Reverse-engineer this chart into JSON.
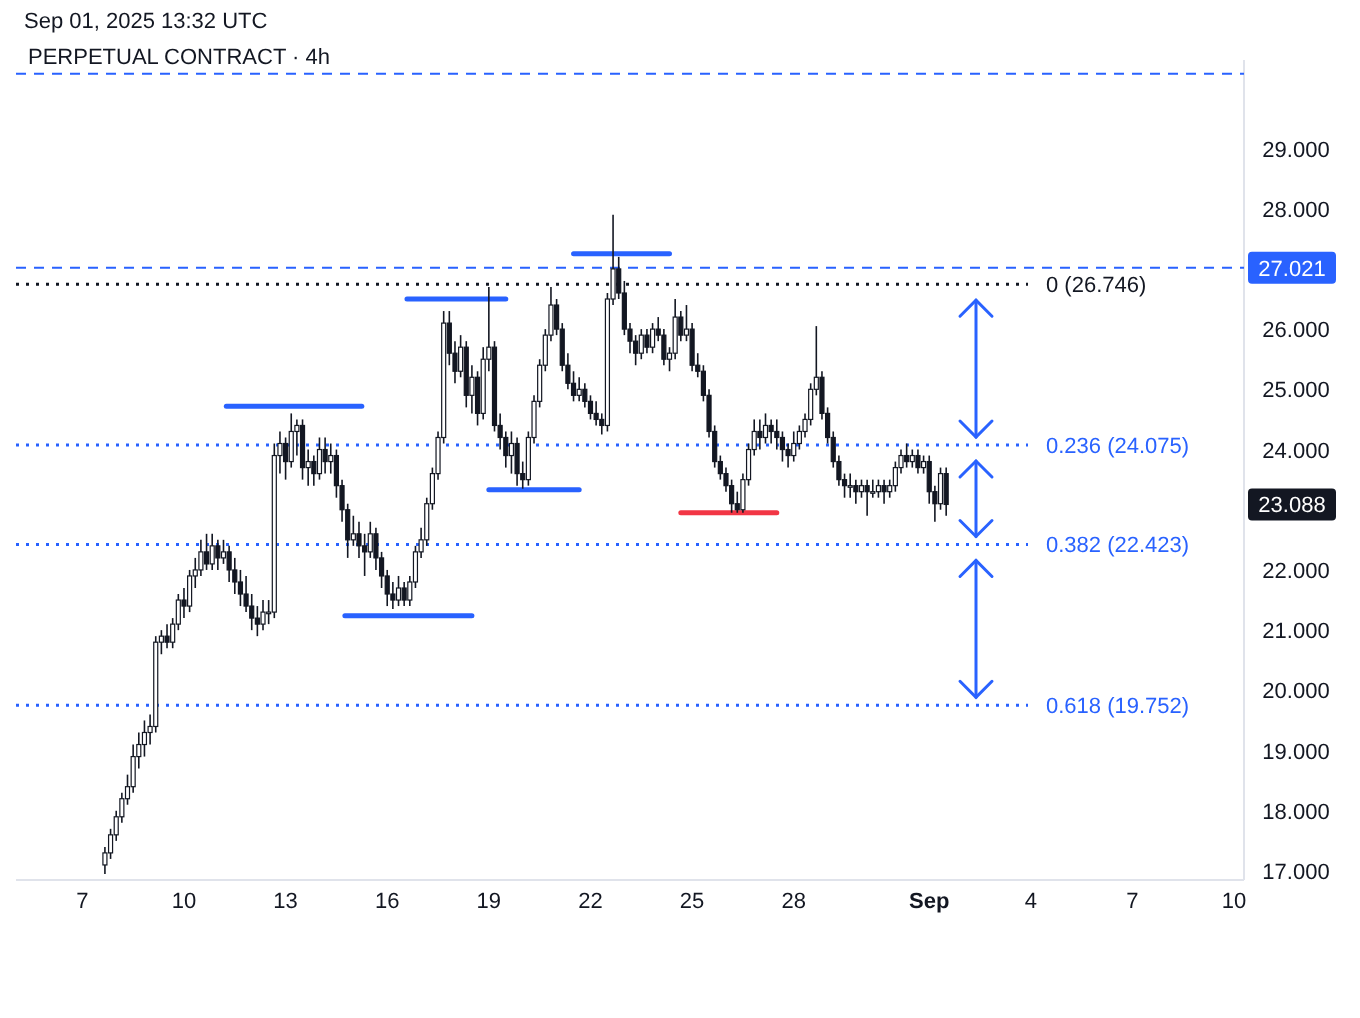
{
  "chart_data": {
    "type": "candlestick",
    "title": "PERPETUAL CONTRACT · 4h",
    "subtitle": "Sep 01, 2025 13:32 UTC",
    "color": "#131722",
    "xlim": [
      "2025-08-05T01:00",
      "2025-09-10T07:00"
    ],
    "xticks": [
      {
        "value": "2025-08-07",
        "label": "7"
      },
      {
        "value": "2025-08-10",
        "label": "10"
      },
      {
        "value": "2025-08-13",
        "label": "13"
      },
      {
        "value": "2025-08-16",
        "label": "16"
      },
      {
        "value": "2025-08-19",
        "label": "19"
      },
      {
        "value": "2025-08-22",
        "label": "22"
      },
      {
        "value": "2025-08-25",
        "label": "25"
      },
      {
        "value": "2025-08-28",
        "label": "28"
      },
      {
        "value": "2025-09-01",
        "label": "Sep"
      },
      {
        "value": "2025-09-04",
        "label": "4"
      },
      {
        "value": "2025-09-07",
        "label": "7"
      },
      {
        "value": "2025-09-10",
        "label": "10"
      }
    ],
    "ylim": [
      16.85,
      30.47
    ],
    "yticks": [
      {
        "value": 17,
        "label": "17.000"
      },
      {
        "value": 18,
        "label": "18.000"
      },
      {
        "value": 19,
        "label": "19.000"
      },
      {
        "value": 20,
        "label": "20.000"
      },
      {
        "value": 21,
        "label": "21.000"
      },
      {
        "value": 22,
        "label": "22.000"
      },
      {
        "value": 24,
        "label": "24.000"
      },
      {
        "value": 25,
        "label": "25.000"
      },
      {
        "value": 26,
        "label": "26.000"
      },
      {
        "value": 28,
        "label": "28.000"
      },
      {
        "value": 29,
        "label": "29.000"
      }
    ],
    "x": [
      "2025-08-07T16:00",
      "2025-08-07T20:00",
      "2025-08-08T00:00",
      "2025-08-08T04:00",
      "2025-08-08T08:00",
      "2025-08-08T12:00",
      "2025-08-08T16:00",
      "2025-08-08T20:00",
      "2025-08-09T00:00",
      "2025-08-09T04:00",
      "2025-08-09T08:00",
      "2025-08-09T12:00",
      "2025-08-09T16:00",
      "2025-08-09T20:00",
      "2025-08-10T00:00",
      "2025-08-10T04:00",
      "2025-08-10T08:00",
      "2025-08-10T12:00",
      "2025-08-10T16:00",
      "2025-08-10T20:00",
      "2025-08-11T00:00",
      "2025-08-11T04:00",
      "2025-08-11T08:00",
      "2025-08-11T12:00",
      "2025-08-11T16:00",
      "2025-08-11T20:00",
      "2025-08-12T00:00",
      "2025-08-12T04:00",
      "2025-08-12T08:00",
      "2025-08-12T12:00",
      "2025-08-12T16:00",
      "2025-08-12T20:00",
      "2025-08-13T00:00",
      "2025-08-13T04:00",
      "2025-08-13T08:00",
      "2025-08-13T12:00",
      "2025-08-13T16:00",
      "2025-08-13T20:00",
      "2025-08-14T00:00",
      "2025-08-14T04:00",
      "2025-08-14T08:00",
      "2025-08-14T12:00",
      "2025-08-14T16:00",
      "2025-08-14T20:00",
      "2025-08-15T00:00",
      "2025-08-15T04:00",
      "2025-08-15T08:00",
      "2025-08-15T12:00",
      "2025-08-15T16:00",
      "2025-08-15T20:00",
      "2025-08-16T00:00",
      "2025-08-16T04:00",
      "2025-08-16T08:00",
      "2025-08-16T12:00",
      "2025-08-16T16:00",
      "2025-08-16T20:00",
      "2025-08-17T00:00",
      "2025-08-17T04:00",
      "2025-08-17T08:00",
      "2025-08-17T12:00",
      "2025-08-17T16:00",
      "2025-08-17T20:00",
      "2025-08-18T00:00",
      "2025-08-18T04:00",
      "2025-08-18T08:00",
      "2025-08-18T12:00",
      "2025-08-18T16:00",
      "2025-08-18T20:00",
      "2025-08-19T00:00",
      "2025-08-19T04:00",
      "2025-08-19T08:00",
      "2025-08-19T12:00",
      "2025-08-19T16:00",
      "2025-08-19T20:00",
      "2025-08-20T00:00",
      "2025-08-20T04:00",
      "2025-08-20T08:00",
      "2025-08-20T12:00",
      "2025-08-20T16:00",
      "2025-08-20T20:00",
      "2025-08-21T00:00",
      "2025-08-21T04:00",
      "2025-08-21T08:00",
      "2025-08-21T12:00",
      "2025-08-21T16:00",
      "2025-08-21T20:00",
      "2025-08-22T00:00",
      "2025-08-22T04:00",
      "2025-08-22T08:00",
      "2025-08-22T12:00",
      "2025-08-22T16:00",
      "2025-08-22T20:00",
      "2025-08-23T00:00",
      "2025-08-23T04:00",
      "2025-08-23T08:00",
      "2025-08-23T12:00",
      "2025-08-23T16:00",
      "2025-08-23T20:00",
      "2025-08-24T00:00",
      "2025-08-24T04:00",
      "2025-08-24T08:00",
      "2025-08-24T12:00",
      "2025-08-24T16:00",
      "2025-08-24T20:00",
      "2025-08-25T00:00",
      "2025-08-25T04:00",
      "2025-08-25T08:00",
      "2025-08-25T12:00",
      "2025-08-25T16:00",
      "2025-08-25T20:00",
      "2025-08-26T00:00",
      "2025-08-26T04:00",
      "2025-08-26T08:00",
      "2025-08-26T12:00",
      "2025-08-26T16:00",
      "2025-08-26T20:00",
      "2025-08-27T00:00",
      "2025-08-27T04:00",
      "2025-08-27T08:00",
      "2025-08-27T12:00",
      "2025-08-27T16:00",
      "2025-08-27T20:00",
      "2025-08-28T00:00",
      "2025-08-28T04:00",
      "2025-08-28T08:00",
      "2025-08-28T12:00",
      "2025-08-28T16:00",
      "2025-08-28T20:00",
      "2025-08-29T00:00",
      "2025-08-29T04:00",
      "2025-08-29T08:00",
      "2025-08-29T12:00",
      "2025-08-29T16:00",
      "2025-08-29T20:00",
      "2025-08-30T00:00",
      "2025-08-30T04:00",
      "2025-08-30T08:00",
      "2025-08-30T12:00",
      "2025-08-30T16:00",
      "2025-08-30T20:00",
      "2025-08-31T00:00",
      "2025-08-31T04:00",
      "2025-08-31T08:00",
      "2025-08-31T12:00",
      "2025-08-31T16:00",
      "2025-08-31T20:00",
      "2025-09-01T00:00",
      "2025-09-01T04:00",
      "2025-09-01T08:00",
      "2025-09-01T12:00"
    ],
    "ohlc": [
      [
        17.1,
        17.4,
        16.95,
        17.3
      ],
      [
        17.3,
        17.7,
        17.2,
        17.6
      ],
      [
        17.6,
        18.0,
        17.5,
        17.9
      ],
      [
        17.9,
        18.3,
        17.8,
        18.2
      ],
      [
        18.2,
        18.6,
        18.1,
        18.4
      ],
      [
        18.4,
        19.1,
        18.3,
        18.9
      ],
      [
        18.9,
        19.3,
        18.7,
        19.1
      ],
      [
        19.1,
        19.5,
        18.9,
        19.3
      ],
      [
        19.3,
        19.6,
        19.1,
        19.4
      ],
      [
        19.4,
        20.9,
        19.3,
        20.8
      ],
      [
        20.8,
        21.0,
        20.6,
        20.9
      ],
      [
        20.9,
        21.1,
        20.7,
        20.8
      ],
      [
        20.8,
        21.2,
        20.7,
        21.1
      ],
      [
        21.1,
        21.6,
        21.0,
        21.5
      ],
      [
        21.5,
        21.7,
        21.2,
        21.4
      ],
      [
        21.4,
        22.0,
        21.3,
        21.9
      ],
      [
        21.9,
        22.2,
        21.7,
        22.0
      ],
      [
        22.0,
        22.5,
        21.9,
        22.3
      ],
      [
        22.3,
        22.6,
        22.0,
        22.1
      ],
      [
        22.1,
        22.6,
        22.0,
        22.4
      ],
      [
        22.4,
        22.5,
        22.0,
        22.2
      ],
      [
        22.2,
        22.5,
        22.1,
        22.3
      ],
      [
        22.3,
        22.4,
        21.8,
        22.0
      ],
      [
        22.0,
        22.2,
        21.6,
        21.8
      ],
      [
        21.8,
        22.0,
        21.4,
        21.6
      ],
      [
        21.6,
        21.9,
        21.3,
        21.4
      ],
      [
        21.4,
        21.6,
        21.0,
        21.2
      ],
      [
        21.2,
        21.4,
        20.9,
        21.1
      ],
      [
        21.1,
        21.5,
        21.0,
        21.3
      ],
      [
        21.3,
        21.5,
        21.1,
        21.3
      ],
      [
        21.3,
        24.1,
        21.2,
        23.9
      ],
      [
        23.9,
        24.3,
        23.6,
        24.1
      ],
      [
        24.1,
        24.2,
        23.5,
        23.8
      ],
      [
        23.8,
        24.6,
        23.7,
        24.3
      ],
      [
        24.3,
        24.5,
        23.9,
        24.4
      ],
      [
        24.4,
        24.5,
        23.5,
        23.7
      ],
      [
        23.7,
        24.0,
        23.4,
        23.8
      ],
      [
        23.8,
        23.9,
        23.4,
        23.6
      ],
      [
        23.6,
        24.2,
        23.5,
        24.0
      ],
      [
        24.0,
        24.2,
        23.6,
        23.8
      ],
      [
        23.8,
        24.1,
        23.6,
        23.9
      ],
      [
        23.9,
        24.0,
        23.2,
        23.4
      ],
      [
        23.4,
        23.5,
        22.8,
        23.0
      ],
      [
        23.0,
        23.1,
        22.2,
        22.5
      ],
      [
        22.5,
        22.9,
        22.4,
        22.6
      ],
      [
        22.6,
        22.8,
        22.2,
        22.4
      ],
      [
        22.4,
        22.6,
        21.9,
        22.3
      ],
      [
        22.3,
        22.8,
        22.2,
        22.6
      ],
      [
        22.6,
        22.7,
        22.0,
        22.2
      ],
      [
        22.2,
        22.3,
        21.7,
        21.9
      ],
      [
        21.9,
        22.0,
        21.4,
        21.6
      ],
      [
        21.6,
        21.8,
        21.35,
        21.5
      ],
      [
        21.5,
        21.9,
        21.4,
        21.7
      ],
      [
        21.7,
        21.8,
        21.4,
        21.5
      ],
      [
        21.5,
        21.9,
        21.4,
        21.8
      ],
      [
        21.8,
        22.4,
        21.7,
        22.3
      ],
      [
        22.3,
        22.7,
        22.2,
        22.5
      ],
      [
        22.5,
        23.2,
        22.4,
        23.1
      ],
      [
        23.1,
        23.7,
        23.0,
        23.6
      ],
      [
        23.6,
        24.3,
        23.5,
        24.2
      ],
      [
        24.2,
        26.3,
        24.1,
        26.1
      ],
      [
        26.1,
        26.3,
        25.4,
        25.6
      ],
      [
        25.6,
        25.8,
        25.1,
        25.3
      ],
      [
        25.3,
        25.9,
        25.2,
        25.7
      ],
      [
        25.7,
        25.8,
        24.7,
        24.9
      ],
      [
        24.9,
        25.4,
        24.6,
        25.2
      ],
      [
        25.2,
        25.3,
        24.4,
        24.6
      ],
      [
        24.6,
        25.7,
        24.5,
        25.5
      ],
      [
        25.5,
        26.7,
        25.3,
        25.7
      ],
      [
        25.7,
        25.8,
        24.3,
        24.4
      ],
      [
        24.4,
        24.6,
        24.0,
        24.2
      ],
      [
        24.2,
        24.3,
        23.7,
        23.9
      ],
      [
        23.9,
        24.3,
        23.6,
        24.1
      ],
      [
        24.1,
        24.2,
        23.4,
        23.6
      ],
      [
        23.6,
        23.8,
        23.35,
        23.5
      ],
      [
        23.5,
        24.3,
        23.4,
        24.2
      ],
      [
        24.2,
        24.9,
        24.1,
        24.8
      ],
      [
        24.8,
        25.5,
        24.7,
        25.4
      ],
      [
        25.4,
        26.0,
        25.3,
        25.9
      ],
      [
        25.9,
        26.7,
        25.8,
        26.4
      ],
      [
        26.4,
        26.5,
        25.9,
        26.0
      ],
      [
        26.0,
        26.1,
        25.3,
        25.4
      ],
      [
        25.4,
        25.6,
        25.0,
        25.1
      ],
      [
        25.1,
        25.3,
        24.8,
        24.9
      ],
      [
        24.9,
        25.2,
        24.8,
        25.0
      ],
      [
        25.0,
        25.1,
        24.7,
        24.8
      ],
      [
        24.8,
        24.9,
        24.5,
        24.6
      ],
      [
        24.6,
        24.8,
        24.4,
        24.5
      ],
      [
        24.5,
        24.6,
        24.25,
        24.4
      ],
      [
        24.4,
        26.6,
        24.3,
        26.5
      ],
      [
        26.5,
        27.9,
        26.4,
        27.0
      ],
      [
        27.0,
        27.2,
        26.5,
        26.6
      ],
      [
        26.6,
        26.8,
        25.9,
        26.0
      ],
      [
        26.0,
        26.1,
        25.6,
        25.8
      ],
      [
        25.8,
        25.9,
        25.4,
        25.6
      ],
      [
        25.6,
        26.0,
        25.5,
        25.9
      ],
      [
        25.9,
        26.0,
        25.6,
        25.7
      ],
      [
        25.7,
        26.1,
        25.6,
        26.0
      ],
      [
        26.0,
        26.2,
        25.8,
        25.9
      ],
      [
        25.9,
        26.0,
        25.4,
        25.5
      ],
      [
        25.5,
        25.7,
        25.3,
        25.6
      ],
      [
        25.6,
        26.5,
        25.5,
        26.2
      ],
      [
        26.2,
        26.3,
        25.8,
        25.9
      ],
      [
        25.9,
        26.4,
        25.8,
        26.0
      ],
      [
        26.0,
        26.1,
        25.3,
        25.4
      ],
      [
        25.4,
        25.6,
        25.2,
        25.3
      ],
      [
        25.3,
        25.4,
        24.8,
        24.9
      ],
      [
        24.9,
        25.0,
        24.2,
        24.3
      ],
      [
        24.3,
        24.4,
        23.7,
        23.8
      ],
      [
        23.8,
        23.9,
        23.5,
        23.6
      ],
      [
        23.6,
        23.7,
        23.3,
        23.4
      ],
      [
        23.4,
        23.5,
        22.95,
        23.1
      ],
      [
        23.1,
        23.3,
        22.95,
        23.0
      ],
      [
        23.0,
        23.6,
        22.95,
        23.5
      ],
      [
        23.5,
        24.1,
        23.4,
        24.0
      ],
      [
        24.0,
        24.5,
        23.9,
        24.3
      ],
      [
        24.3,
        24.5,
        24.0,
        24.2
      ],
      [
        24.2,
        24.6,
        24.1,
        24.4
      ],
      [
        24.4,
        24.5,
        24.1,
        24.3
      ],
      [
        24.3,
        24.5,
        24.0,
        24.2
      ],
      [
        24.2,
        24.3,
        23.8,
        24.0
      ],
      [
        24.0,
        24.1,
        23.7,
        23.9
      ],
      [
        23.9,
        24.3,
        23.8,
        24.1
      ],
      [
        24.1,
        24.4,
        24.0,
        24.3
      ],
      [
        24.3,
        24.6,
        24.2,
        24.5
      ],
      [
        24.5,
        25.1,
        24.4,
        25.0
      ],
      [
        25.0,
        26.05,
        24.9,
        25.2
      ],
      [
        25.2,
        25.3,
        24.5,
        24.6
      ],
      [
        24.6,
        24.7,
        24.1,
        24.2
      ],
      [
        24.2,
        24.3,
        23.7,
        23.8
      ],
      [
        23.8,
        23.9,
        23.4,
        23.5
      ],
      [
        23.5,
        23.6,
        23.2,
        23.4
      ],
      [
        23.4,
        23.6,
        23.2,
        23.4
      ],
      [
        23.4,
        23.5,
        23.1,
        23.3
      ],
      [
        23.3,
        23.5,
        23.2,
        23.4
      ],
      [
        23.4,
        23.5,
        22.9,
        23.3
      ],
      [
        23.3,
        23.5,
        23.2,
        23.3
      ],
      [
        23.3,
        23.5,
        23.2,
        23.4
      ],
      [
        23.4,
        23.5,
        23.1,
        23.3
      ],
      [
        23.3,
        23.5,
        23.2,
        23.4
      ],
      [
        23.4,
        23.8,
        23.3,
        23.7
      ],
      [
        23.7,
        24.0,
        23.6,
        23.9
      ],
      [
        23.9,
        24.1,
        23.7,
        23.8
      ],
      [
        23.8,
        24.0,
        23.7,
        23.9
      ],
      [
        23.9,
        24.0,
        23.6,
        23.7
      ],
      [
        23.7,
        23.9,
        23.6,
        23.8
      ],
      [
        23.8,
        23.9,
        23.1,
        23.3
      ],
      [
        23.3,
        23.4,
        22.8,
        23.1
      ],
      [
        23.1,
        23.7,
        23.0,
        23.6
      ],
      [
        23.6,
        23.7,
        22.9,
        23.088
      ]
    ],
    "series": [
      {
        "type": "line",
        "color": "#2962ff",
        "x": [
          "2025-08-11T06:00",
          "2025-08-15T06:00"
        ],
        "values": [
          24.72,
          24.72
        ]
      },
      {
        "type": "line",
        "color": "#2962ff",
        "x": [
          "2025-08-14T18:00",
          "2025-08-18T12:00"
        ],
        "values": [
          21.24,
          21.24
        ]
      },
      {
        "type": "line",
        "color": "#2962ff",
        "x": [
          "2025-08-16T14:00",
          "2025-08-19T12:00"
        ],
        "values": [
          26.5,
          26.5
        ]
      },
      {
        "type": "line",
        "color": "#2962ff",
        "x": [
          "2025-08-19T00:00",
          "2025-08-21T16:00"
        ],
        "values": [
          23.33,
          23.33
        ]
      },
      {
        "type": "line",
        "color": "#2962ff",
        "x": [
          "2025-08-21T12:00",
          "2025-08-24T08:00"
        ],
        "values": [
          27.25,
          27.25
        ]
      },
      {
        "type": "line",
        "color": "#f23645",
        "x": [
          "2025-08-24T16:00",
          "2025-08-27T12:00"
        ],
        "values": [
          22.95,
          22.95
        ]
      }
    ],
    "ref_lines": [
      {
        "axis": "y",
        "value": 30.24,
        "color": "#2962ff",
        "line_style": "dashed"
      },
      {
        "axis": "y",
        "value": 27.021,
        "label": "27.021",
        "color": "#2962ff",
        "line_style": "dashed"
      },
      {
        "axis": "y",
        "value": 26.746,
        "label": "0 (26.746)",
        "color": "#131722",
        "line_style": "dotted"
      },
      {
        "axis": "y",
        "value": 24.075,
        "label": "0.236 (24.075)",
        "color": "#2962ff",
        "line_style": "dotted"
      },
      {
        "axis": "y",
        "value": 22.423,
        "label": "0.382 (22.423)",
        "color": "#2962ff",
        "line_style": "dotted"
      },
      {
        "axis": "y",
        "value": 19.752,
        "label": "0.618 (19.752)",
        "color": "#2962ff",
        "line_style": "dotted"
      }
    ],
    "annotations": [
      "23.088"
    ]
  }
}
